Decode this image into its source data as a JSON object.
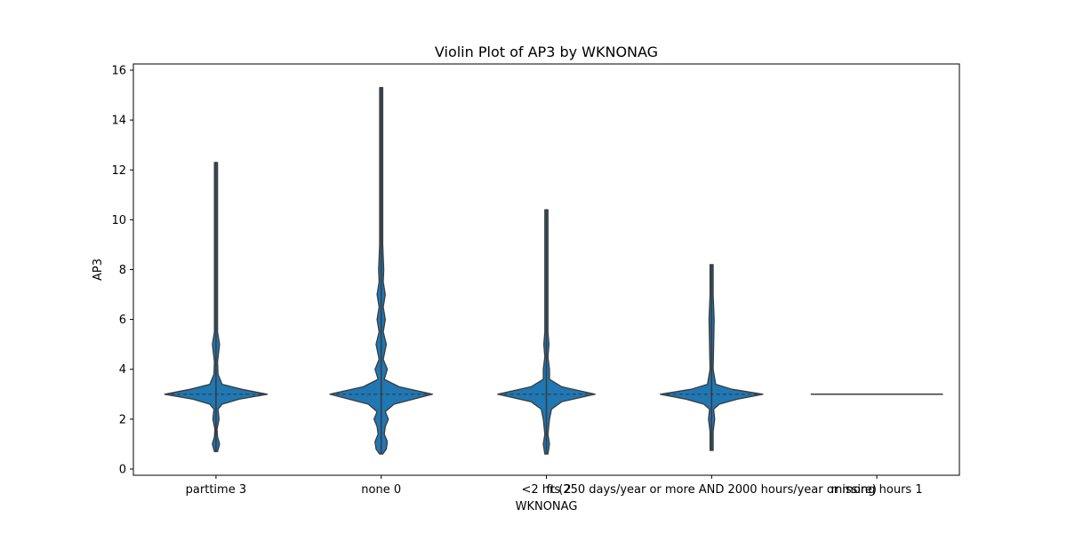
{
  "chart_data": {
    "type": "violin",
    "title": "Violin Plot of AP3 by WKNONAG",
    "xlabel": "WKNONAG",
    "ylabel": "AP3",
    "ylim": [
      -0.25,
      16.25
    ],
    "yticks": [
      0,
      2,
      4,
      6,
      8,
      10,
      12,
      14,
      16
    ],
    "grid": false,
    "fill_color": "#1f77b4",
    "edge_color": "#3a3a3a",
    "categories": [
      "parttime 3",
      "none 0",
      "<2 hrs 2",
      "ft (250 days/year or more AND 2000 hours/year or more)",
      "missing hours 1"
    ],
    "violins": [
      {
        "category": "parttime 3",
        "min": 0.7,
        "max": 12.3,
        "median": 3.0,
        "profile": [
          [
            0.7,
            0.03
          ],
          [
            1.0,
            0.07
          ],
          [
            1.3,
            0.03
          ],
          [
            1.6,
            0.02
          ],
          [
            2.0,
            0.06
          ],
          [
            2.4,
            0.04
          ],
          [
            2.6,
            0.12
          ],
          [
            2.8,
            0.45
          ],
          [
            3.0,
            1.0
          ],
          [
            3.2,
            0.5
          ],
          [
            3.4,
            0.12
          ],
          [
            3.8,
            0.04
          ],
          [
            4.3,
            0.03
          ],
          [
            5.0,
            0.07
          ],
          [
            5.5,
            0.03
          ],
          [
            7.0,
            0.03
          ],
          [
            9.0,
            0.03
          ],
          [
            12.3,
            0.03
          ]
        ]
      },
      {
        "category": "none 0",
        "min": 0.6,
        "max": 15.3,
        "median": 3.0,
        "profile": [
          [
            0.6,
            0.03
          ],
          [
            0.8,
            0.1
          ],
          [
            1.1,
            0.12
          ],
          [
            1.4,
            0.06
          ],
          [
            1.7,
            0.08
          ],
          [
            2.0,
            0.14
          ],
          [
            2.3,
            0.08
          ],
          [
            2.6,
            0.25
          ],
          [
            3.0,
            1.0
          ],
          [
            3.3,
            0.35
          ],
          [
            3.6,
            0.06
          ],
          [
            4.0,
            0.12
          ],
          [
            4.4,
            0.04
          ],
          [
            5.0,
            0.1
          ],
          [
            5.5,
            0.04
          ],
          [
            6.0,
            0.08
          ],
          [
            6.5,
            0.04
          ],
          [
            7.0,
            0.08
          ],
          [
            7.5,
            0.04
          ],
          [
            8.0,
            0.05
          ],
          [
            9.0,
            0.03
          ],
          [
            12.0,
            0.03
          ],
          [
            15.3,
            0.03
          ]
        ]
      },
      {
        "category": "<2 hrs 2",
        "min": 0.6,
        "max": 10.4,
        "median": 3.0,
        "profile": [
          [
            0.6,
            0.03
          ],
          [
            1.0,
            0.06
          ],
          [
            1.4,
            0.03
          ],
          [
            2.0,
            0.06
          ],
          [
            2.4,
            0.1
          ],
          [
            2.7,
            0.3
          ],
          [
            3.0,
            0.95
          ],
          [
            3.3,
            0.3
          ],
          [
            3.6,
            0.06
          ],
          [
            4.0,
            0.06
          ],
          [
            4.5,
            0.03
          ],
          [
            5.0,
            0.05
          ],
          [
            5.5,
            0.03
          ],
          [
            8.0,
            0.03
          ],
          [
            10.4,
            0.03
          ]
        ]
      },
      {
        "category": "ft (250 days/year or more AND 2000 hours/year or more)",
        "min": 0.75,
        "max": 8.2,
        "median": 3.0,
        "profile": [
          [
            0.75,
            0.03
          ],
          [
            1.5,
            0.03
          ],
          [
            2.0,
            0.06
          ],
          [
            2.4,
            0.04
          ],
          [
            2.6,
            0.15
          ],
          [
            2.8,
            0.5
          ],
          [
            3.0,
            1.0
          ],
          [
            3.2,
            0.4
          ],
          [
            3.4,
            0.08
          ],
          [
            4.0,
            0.03
          ],
          [
            5.0,
            0.04
          ],
          [
            6.0,
            0.05
          ],
          [
            7.0,
            0.03
          ],
          [
            8.2,
            0.03
          ]
        ]
      },
      {
        "category": "missing hours 1",
        "min": 3.0,
        "max": 3.0,
        "median": 3.0,
        "profile": []
      }
    ]
  }
}
